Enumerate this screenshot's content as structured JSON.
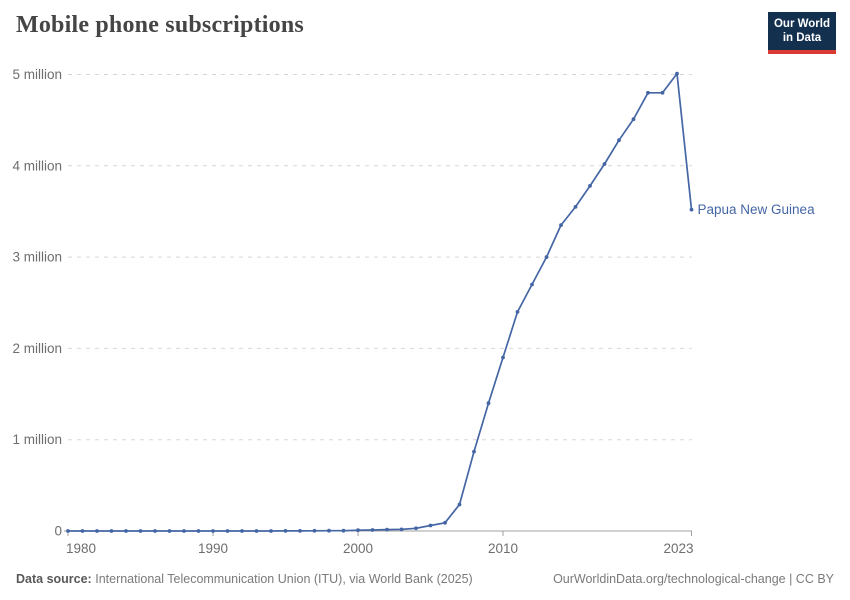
{
  "header": {
    "title": "Mobile phone subscriptions",
    "logo": {
      "line1": "Our World",
      "line2": "in Data"
    }
  },
  "colors": {
    "series_blue": "#4566a5",
    "logo_navy": "#14304f",
    "logo_red": "#d93a34",
    "gridline": "#d7d7d7",
    "axis_text": "#6e6e6e"
  },
  "chart_data": {
    "type": "line",
    "title": "Mobile phone subscriptions",
    "xlabel": "",
    "ylabel": "",
    "xlim": [
      1980,
      2023
    ],
    "ylim": [
      0,
      5000000
    ],
    "grid": "horizontal-dashed",
    "legend_position": "end-of-line-label",
    "x_ticks": [
      1980,
      1990,
      2000,
      2010,
      2023
    ],
    "y_ticks": [
      {
        "value": 0,
        "label": "0"
      },
      {
        "value": 1000000,
        "label": "1 million"
      },
      {
        "value": 2000000,
        "label": "2 million"
      },
      {
        "value": 3000000,
        "label": "3 million"
      },
      {
        "value": 4000000,
        "label": "4 million"
      },
      {
        "value": 5000000,
        "label": "5 million"
      }
    ],
    "series": [
      {
        "name": "Papua New Guinea",
        "color": "#4566a5",
        "x": [
          1980,
          1981,
          1982,
          1983,
          1984,
          1985,
          1986,
          1987,
          1988,
          1989,
          1990,
          1991,
          1992,
          1993,
          1994,
          1995,
          1996,
          1997,
          1998,
          1999,
          2000,
          2001,
          2002,
          2003,
          2004,
          2005,
          2006,
          2007,
          2008,
          2009,
          2010,
          2011,
          2012,
          2013,
          2014,
          2015,
          2016,
          2017,
          2018,
          2019,
          2020,
          2021,
          2022,
          2023
        ],
        "values": [
          0,
          0,
          0,
          0,
          0,
          0,
          0,
          0,
          0,
          0,
          0,
          0,
          0,
          0,
          225,
          872,
          1441,
          2625,
          3053,
          3625,
          8568,
          11000,
          15000,
          18000,
          30000,
          60000,
          90000,
          290000,
          870000,
          1400000,
          1900000,
          2400000,
          2700000,
          3000000,
          3350000,
          3550000,
          3780000,
          4020000,
          4280000,
          4510000,
          4800000,
          4800000,
          5010000,
          3520000
        ]
      }
    ]
  },
  "footer": {
    "source_label": "Data source:",
    "source_text": "International Telecommunication Union (ITU), via World Bank (2025)",
    "link_text": "OurWorldinData.org/technological-change | CC BY"
  }
}
